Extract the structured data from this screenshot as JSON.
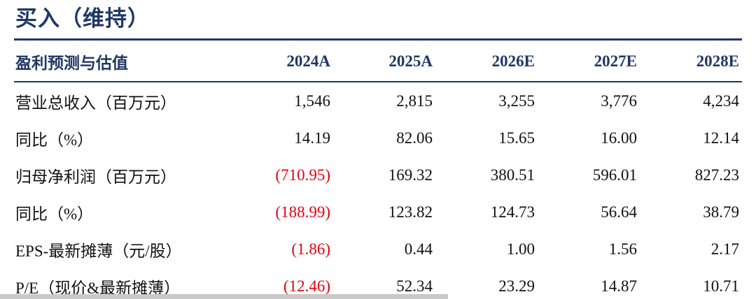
{
  "page": {
    "title": "买入（维持）"
  },
  "table": {
    "header": [
      "盈利预测与估值",
      "2024A",
      "2025A",
      "2026E",
      "2027E",
      "2028E"
    ],
    "rows": [
      {
        "label": "营业总收入（百万元）",
        "values": [
          "1,546",
          "2,815",
          "3,255",
          "3,776",
          "4,234"
        ]
      },
      {
        "label": "同比（%）",
        "values": [
          "14.19",
          "82.06",
          "15.65",
          "16.00",
          "12.14"
        ]
      },
      {
        "label": "归母净利润（百万元）",
        "values": [
          "(710.95)",
          "169.32",
          "380.51",
          "596.01",
          "827.23"
        ]
      },
      {
        "label": "同比（%）",
        "values": [
          "(188.99)",
          "123.82",
          "124.73",
          "56.64",
          "38.79"
        ]
      },
      {
        "label": "EPS-最新摊薄（元/股）",
        "values": [
          "(1.86)",
          "0.44",
          "1.00",
          "1.56",
          "2.17"
        ]
      },
      {
        "label": "P/E（现价&最新摊薄）",
        "values": [
          "(12.46)",
          "52.34",
          "23.29",
          "14.87",
          "10.71"
        ]
      }
    ]
  },
  "colors": {
    "navy": "#1f3864",
    "negative_red": "#e60012",
    "body_text": "#111111"
  }
}
